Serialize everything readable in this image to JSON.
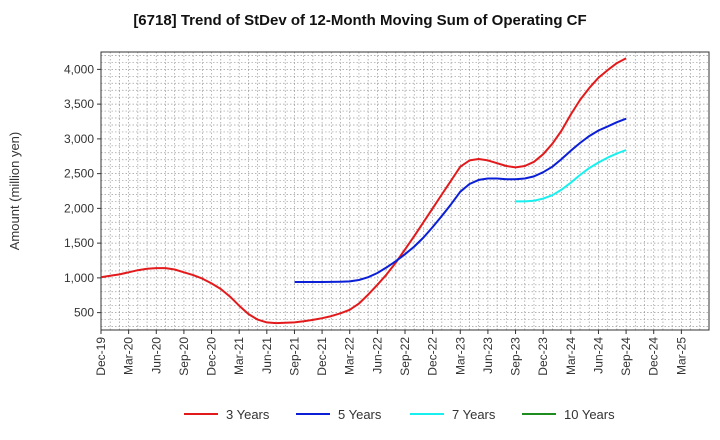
{
  "chart_data": {
    "type": "line",
    "title": "[6718]  Trend of StDev of 12-Month Moving Sum of Operating CF",
    "ylabel": "Amount (million yen)",
    "xlabel": "",
    "ylim": [
      250,
      4250
    ],
    "yticks": [
      "500",
      "1,000",
      "1,500",
      "2,000",
      "2,500",
      "3,000",
      "3,500",
      "4,000"
    ],
    "xticks": [
      "Dec-19",
      "Mar-20",
      "Jun-20",
      "Sep-20",
      "Dec-20",
      "Mar-21",
      "Jun-21",
      "Sep-21",
      "Dec-21",
      "Mar-22",
      "Jun-22",
      "Sep-22",
      "Dec-22",
      "Mar-23",
      "Jun-23",
      "Sep-23",
      "Dec-23",
      "Mar-24",
      "Jun-24",
      "Sep-24",
      "Dec-24",
      "Mar-25"
    ],
    "grid": true,
    "legend_position": "bottom",
    "series": [
      {
        "name": "3 Years",
        "color": "#e31a1c",
        "x": [
          "Dec-19",
          "Jan-20",
          "Feb-20",
          "Mar-20",
          "Apr-20",
          "May-20",
          "Jun-20",
          "Jul-20",
          "Aug-20",
          "Sep-20",
          "Oct-20",
          "Nov-20",
          "Dec-20",
          "Jan-21",
          "Feb-21",
          "Mar-21",
          "Apr-21",
          "May-21",
          "Jun-21",
          "Jul-21",
          "Aug-21",
          "Sep-21",
          "Oct-21",
          "Nov-21",
          "Dec-21",
          "Jan-22",
          "Feb-22",
          "Mar-22",
          "Apr-22",
          "May-22",
          "Jun-22",
          "Jul-22",
          "Aug-22",
          "Sep-22",
          "Oct-22",
          "Nov-22",
          "Dec-22",
          "Jan-23",
          "Feb-23",
          "Mar-23",
          "Apr-23",
          "May-23",
          "Jun-23",
          "Jul-23",
          "Aug-23",
          "Sep-23",
          "Oct-23",
          "Nov-23",
          "Dec-23",
          "Jan-24",
          "Feb-24",
          "Mar-24",
          "Apr-24",
          "May-24",
          "Jun-24",
          "Jul-24",
          "Aug-24",
          "Sep-24"
        ],
        "values": [
          1010,
          1030,
          1050,
          1080,
          1110,
          1130,
          1140,
          1140,
          1120,
          1080,
          1040,
          990,
          920,
          840,
          730,
          600,
          480,
          400,
          360,
          350,
          355,
          360,
          375,
          395,
          420,
          450,
          490,
          540,
          630,
          760,
          900,
          1050,
          1220,
          1410,
          1600,
          1800,
          2000,
          2200,
          2400,
          2600,
          2690,
          2710,
          2690,
          2650,
          2610,
          2590,
          2610,
          2670,
          2780,
          2930,
          3120,
          3350,
          3560,
          3730,
          3880,
          3990,
          4090,
          4160
        ]
      },
      {
        "name": "5 Years",
        "color": "#0a1fd6",
        "x": [
          "Sep-21",
          "Oct-21",
          "Nov-21",
          "Dec-21",
          "Jan-22",
          "Feb-22",
          "Mar-22",
          "Apr-22",
          "May-22",
          "Jun-22",
          "Jul-22",
          "Aug-22",
          "Sep-22",
          "Oct-22",
          "Nov-22",
          "Dec-22",
          "Jan-23",
          "Feb-23",
          "Mar-23",
          "Apr-23",
          "May-23",
          "Jun-23",
          "Jul-23",
          "Aug-23",
          "Sep-23",
          "Oct-23",
          "Nov-23",
          "Dec-23",
          "Jan-24",
          "Feb-24",
          "Mar-24",
          "Apr-24",
          "May-24",
          "Jun-24",
          "Jul-24",
          "Aug-24",
          "Sep-24"
        ],
        "values": [
          940,
          940,
          940,
          940,
          942,
          945,
          950,
          970,
          1010,
          1070,
          1150,
          1240,
          1340,
          1450,
          1580,
          1730,
          1890,
          2060,
          2240,
          2350,
          2410,
          2430,
          2430,
          2420,
          2420,
          2430,
          2460,
          2520,
          2600,
          2710,
          2830,
          2940,
          3040,
          3120,
          3180,
          3240,
          3290
        ]
      },
      {
        "name": "7 Years",
        "color": "#18f0f0",
        "x": [
          "Sep-23",
          "Oct-23",
          "Nov-23",
          "Dec-23",
          "Jan-24",
          "Feb-24",
          "Mar-24",
          "Apr-24",
          "May-24",
          "Jun-24",
          "Jul-24",
          "Aug-24",
          "Sep-24"
        ],
        "values": [
          2100,
          2100,
          2110,
          2140,
          2190,
          2270,
          2370,
          2480,
          2580,
          2660,
          2730,
          2790,
          2840
        ]
      },
      {
        "name": "10 Years",
        "color": "#1e8c1e",
        "x": [],
        "values": []
      }
    ]
  }
}
